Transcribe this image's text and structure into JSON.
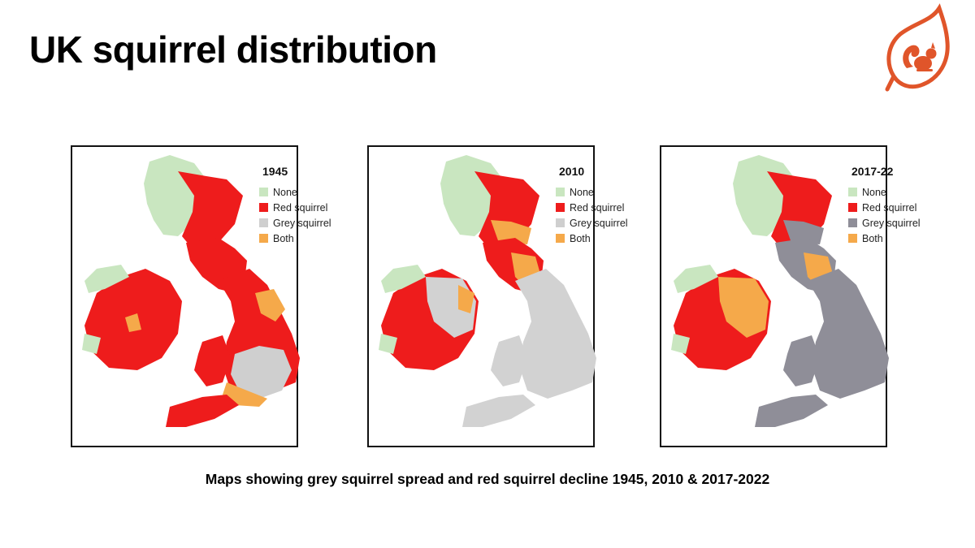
{
  "slide": {
    "title": "UK squirrel distribution",
    "caption": "Maps showing grey squirrel spread and red squirrel decline 1945, 2010 & 2017-2022"
  },
  "logo": {
    "icon": "squirrel-leaf-logo",
    "color": "#E0552A"
  },
  "legend_colors": {
    "none": "#C9E6C0",
    "red": "#EE1C1C",
    "grey": "#CFCFCF",
    "both": "#F5A94A"
  },
  "maps": [
    {
      "year": "1945",
      "legend": [
        "None",
        "Red squirrel",
        "Grey squirrel",
        "Both"
      ],
      "grey_color": "#CFCFCF"
    },
    {
      "year": "2010",
      "legend": [
        "None",
        "Red squirrel",
        "Grey squirrel",
        "Both"
      ],
      "grey_color": "#D2D2D2"
    },
    {
      "year": "2017-22",
      "legend": [
        "None",
        "Red squirrel",
        "Grey squirrel",
        "Both"
      ],
      "grey_color": "#8F8E98"
    }
  ]
}
